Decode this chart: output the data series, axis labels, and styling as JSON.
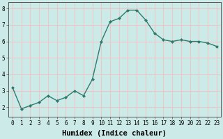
{
  "x": [
    0,
    1,
    2,
    3,
    4,
    5,
    6,
    7,
    8,
    9,
    10,
    11,
    12,
    13,
    14,
    15,
    16,
    17,
    18,
    19,
    20,
    21,
    22,
    23
  ],
  "y": [
    3.2,
    1.9,
    2.1,
    2.3,
    2.7,
    2.4,
    2.6,
    3.0,
    2.7,
    3.7,
    6.0,
    7.2,
    7.4,
    7.9,
    7.9,
    7.3,
    6.5,
    6.1,
    6.0,
    6.1,
    6.0,
    6.0,
    5.9,
    5.7
  ],
  "line_color": "#2e7b6e",
  "marker": "D",
  "marker_size": 2.0,
  "bg_color": "#cceae7",
  "grid_color": "#e8c8c8",
  "xlabel": "Humidex (Indice chaleur)",
  "xlim": [
    -0.5,
    23.5
  ],
  "ylim": [
    1.4,
    8.4
  ],
  "yticks": [
    2,
    3,
    4,
    5,
    6,
    7,
    8
  ],
  "xticks": [
    0,
    1,
    2,
    3,
    4,
    5,
    6,
    7,
    8,
    9,
    10,
    11,
    12,
    13,
    14,
    15,
    16,
    17,
    18,
    19,
    20,
    21,
    22,
    23
  ],
  "tick_label_size": 5.5,
  "xlabel_size": 7.5,
  "xlabel_bold": true,
  "linewidth": 1.0
}
